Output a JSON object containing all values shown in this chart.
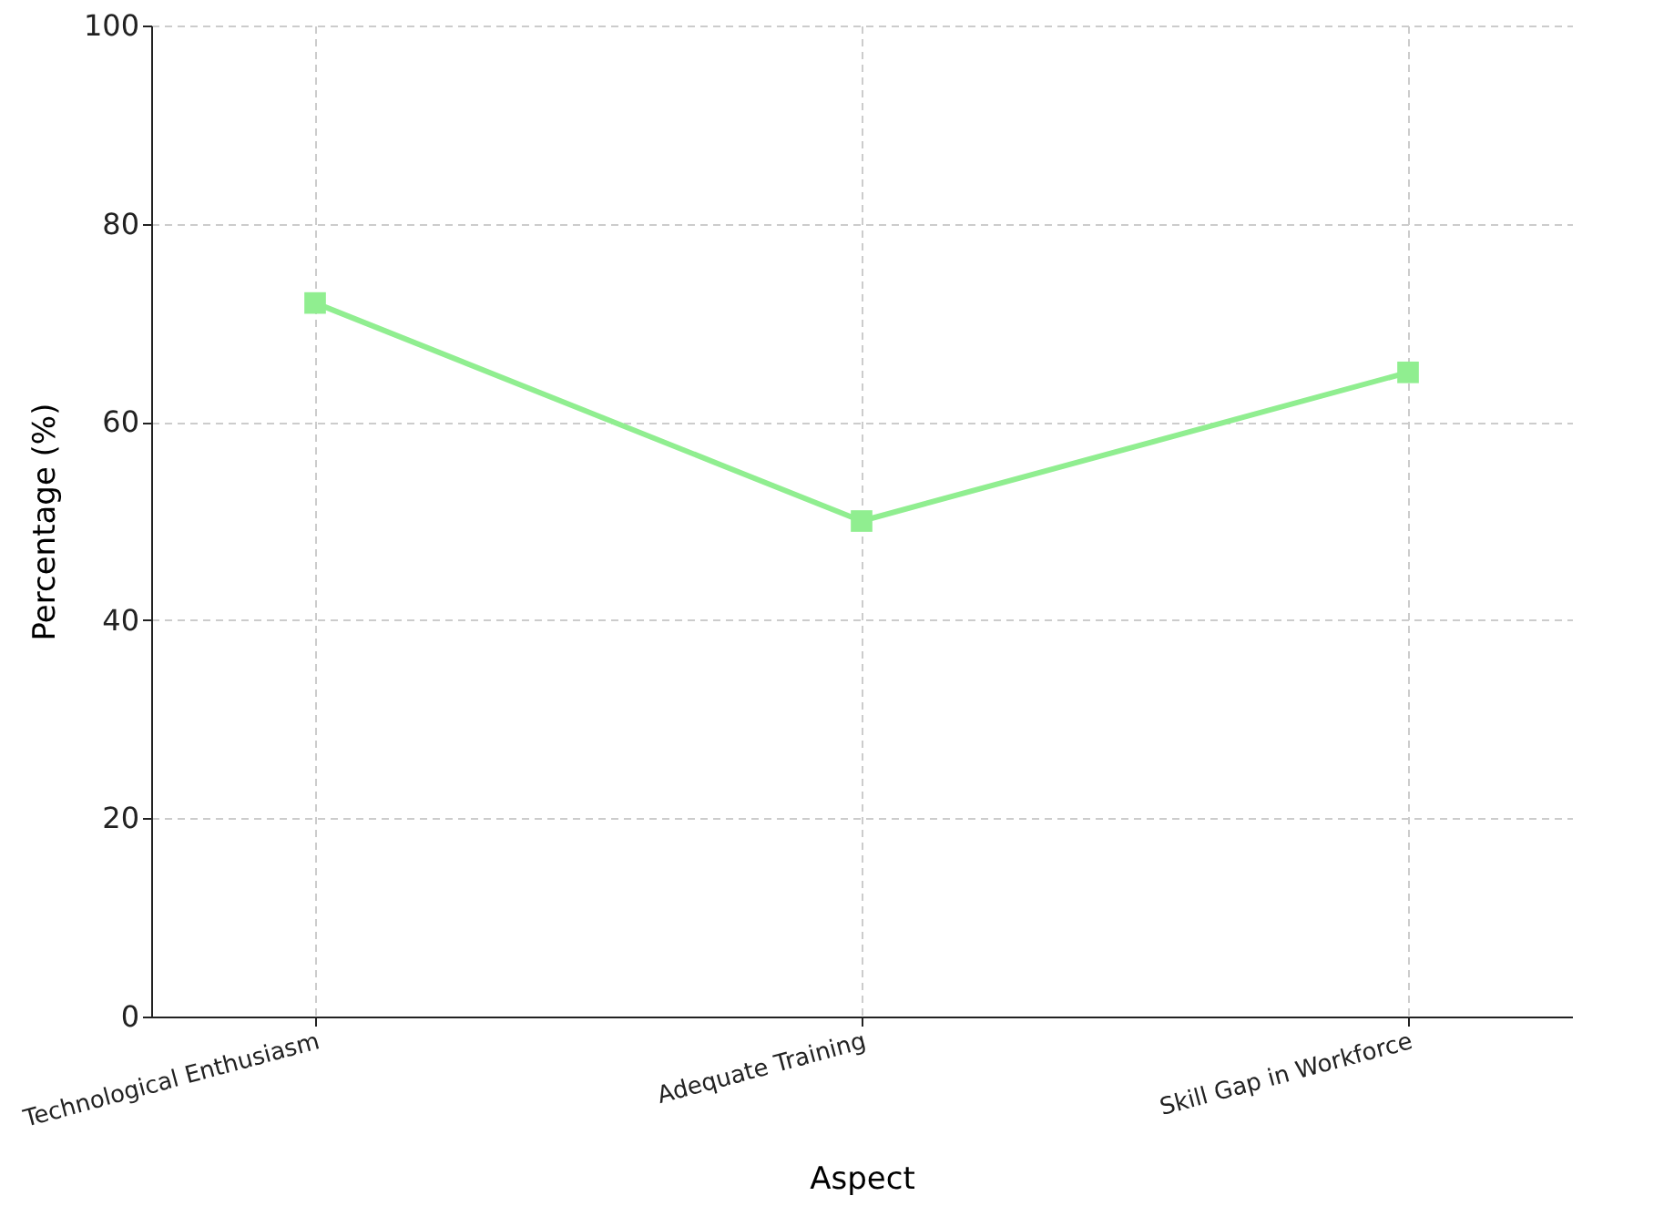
{
  "chart_data": {
    "type": "line",
    "xlabel": "Aspect",
    "ylabel": "Percentage (%)",
    "categories": [
      "Technological Enthusiasm",
      "Adequate Training",
      "Skill Gap in Workforce"
    ],
    "series": [
      {
        "color": "#90ee90",
        "values": [
          72,
          50,
          65
        ]
      }
    ],
    "ylim": [
      0,
      100
    ],
    "yticks": [
      0,
      20,
      40,
      60,
      80,
      100
    ],
    "grid": true,
    "marker": "square",
    "line_style": "solid"
  }
}
